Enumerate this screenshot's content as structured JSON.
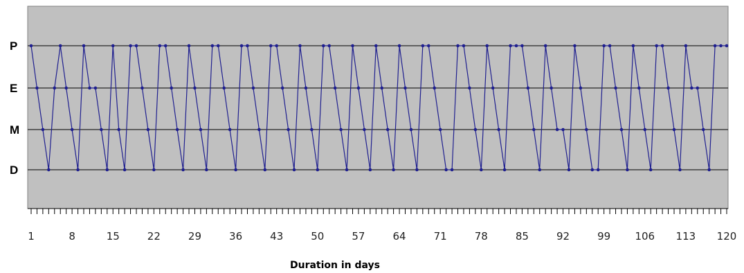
{
  "chart_data": {
    "type": "line",
    "title": "",
    "xlabel": "Duration in days",
    "ylabel": "",
    "y_categories": [
      "D",
      "M",
      "E",
      "P"
    ],
    "x_tick_labels": [
      "1",
      "8",
      "15",
      "22",
      "29",
      "36",
      "43",
      "50",
      "57",
      "64",
      "71",
      "78",
      "85",
      "92",
      "99",
      "106",
      "113",
      "120"
    ],
    "xlim": [
      1,
      120
    ],
    "plot_background": "#c0c0c0",
    "series_color": "#1f1f8f",
    "grid": "horizontal at each level",
    "legend": "none",
    "series": [
      {
        "x": [
          1,
          2,
          3,
          4,
          5,
          6,
          7,
          8,
          9,
          10,
          11,
          12,
          13,
          14,
          15,
          16,
          17,
          18,
          19,
          20,
          21,
          22,
          23,
          24,
          25,
          26,
          27,
          28,
          29,
          30,
          31,
          32,
          33,
          34,
          35,
          36,
          37,
          38,
          39,
          40,
          41,
          42,
          43,
          44,
          45,
          46,
          47,
          48,
          49,
          50,
          51,
          52,
          53,
          54,
          55,
          56,
          57,
          58,
          59,
          60,
          61,
          62,
          63,
          64,
          65,
          66,
          67,
          68,
          69,
          70,
          71,
          72,
          73,
          74,
          75,
          76,
          77,
          78,
          79,
          80,
          81,
          82,
          83,
          84,
          85,
          86,
          87,
          88,
          89,
          90,
          91,
          92,
          93,
          94,
          95,
          96,
          97,
          98,
          99,
          100,
          101,
          102,
          103,
          104,
          105,
          106,
          107,
          108,
          109,
          110,
          111,
          112,
          113,
          114,
          115,
          116,
          117,
          118,
          119,
          120
        ],
        "y": [
          "P",
          "E",
          "M",
          "D",
          "E",
          "P",
          "E",
          "M",
          "D",
          "P",
          "E",
          "E",
          "M",
          "D",
          "P",
          "M",
          "D",
          "P",
          "P",
          "E",
          "M",
          "D",
          "P",
          "P",
          "E",
          "M",
          "D",
          "P",
          "E",
          "M",
          "D",
          "P",
          "P",
          "E",
          "M",
          "D",
          "P",
          "P",
          "E",
          "M",
          "D",
          "P",
          "P",
          "E",
          "M",
          "D",
          "P",
          "E",
          "M",
          "D",
          "P",
          "P",
          "E",
          "M",
          "D",
          "P",
          "E",
          "M",
          "D",
          "P",
          "E",
          "M",
          "D",
          "P",
          "E",
          "M",
          "D",
          "P",
          "P",
          "E",
          "M",
          "D",
          "D",
          "P",
          "P",
          "E",
          "M",
          "D",
          "P",
          "E",
          "M",
          "D",
          "P",
          "P",
          "P",
          "E",
          "M",
          "D",
          "P",
          "E",
          "M",
          "M",
          "D",
          "P",
          "E",
          "M",
          "D",
          "D",
          "P",
          "P",
          "E",
          "M",
          "D",
          "P",
          "E",
          "M",
          "D",
          "P",
          "P",
          "E",
          "M",
          "D",
          "P",
          "E",
          "E",
          "M",
          "D",
          "P",
          "P",
          "P"
        ]
      }
    ]
  }
}
